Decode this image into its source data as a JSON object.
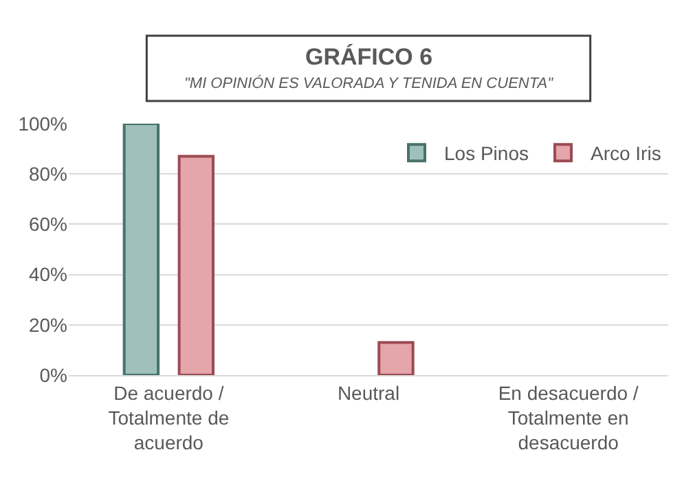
{
  "chart_data": {
    "type": "bar",
    "title": "GRÁFICO 6",
    "subtitle": "\"MI OPINIÓN ES VALORADA Y TENIDA EN CUENTA\"",
    "categories": [
      "De acuerdo /\nTotalmente de\nacuerdo",
      "Neutral",
      "En desacuerdo /\nTotalmente en\ndesacuerdo"
    ],
    "series": [
      {
        "name": "Los Pinos",
        "color": "#9fc0bb",
        "values": [
          100,
          0,
          0
        ]
      },
      {
        "name": "Arco Iris",
        "color": "#e4a5ab",
        "values": [
          87,
          13,
          0
        ]
      }
    ],
    "ylim": [
      0,
      100
    ],
    "yticks": [
      {
        "value": 0,
        "label": "0%"
      },
      {
        "value": 20,
        "label": "20%"
      },
      {
        "value": 40,
        "label": "40%"
      },
      {
        "value": 60,
        "label": "60%"
      },
      {
        "value": 80,
        "label": "80%"
      },
      {
        "value": 100,
        "label": "100%"
      }
    ],
    "grid": "y",
    "legend": "top right"
  }
}
